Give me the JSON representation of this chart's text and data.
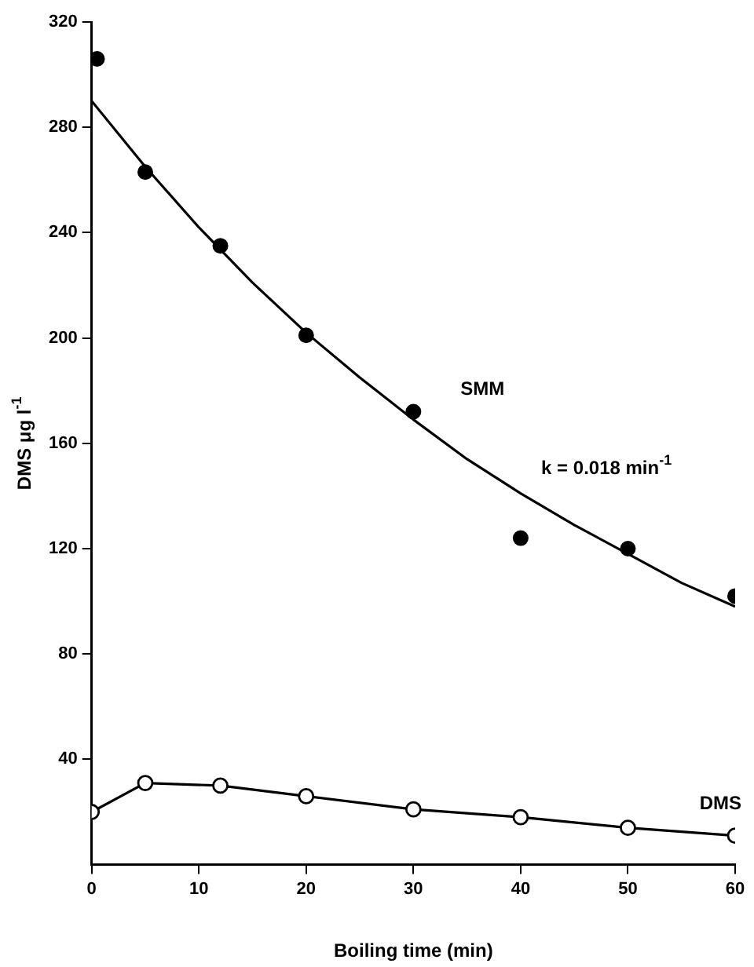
{
  "chart_data": {
    "type": "scatter",
    "xlabel": "Boiling time (min)",
    "ylabel": "DMS μg l$^{-1}$",
    "xlim": [
      0,
      60
    ],
    "xticks": [
      0,
      10,
      20,
      30,
      40,
      50,
      60
    ],
    "ylim": [
      0,
      320
    ],
    "yticks": [
      40,
      80,
      120,
      160,
      200,
      240,
      280,
      320
    ],
    "grid": false,
    "legend": false,
    "series": [
      {
        "name": "SMM",
        "marker": "circle",
        "color": "#000000",
        "x": [
          0.5,
          5,
          12,
          20,
          30,
          40,
          50,
          60
        ],
        "values": [
          306,
          263,
          235,
          201,
          172,
          124,
          120,
          102
        ]
      },
      {
        "type": "line",
        "marker": "none",
        "color": "#000000",
        "x": [
          0,
          5,
          10,
          15,
          20,
          25,
          30,
          35,
          40,
          45,
          50,
          55,
          60
        ],
        "values": [
          290,
          265,
          242,
          221,
          202,
          185,
          169,
          154,
          141,
          129,
          118,
          107,
          98
        ]
      },
      {
        "name": "DMS",
        "type": "line",
        "marker": "circle",
        "color": "#000000",
        "x": [
          0,
          5,
          12,
          20,
          30,
          40,
          50,
          60
        ],
        "values": [
          20,
          31,
          30,
          26,
          21,
          18,
          14,
          11
        ]
      }
    ],
    "annotations": [
      "k = 0.018 min$^{-1}$"
    ]
  }
}
